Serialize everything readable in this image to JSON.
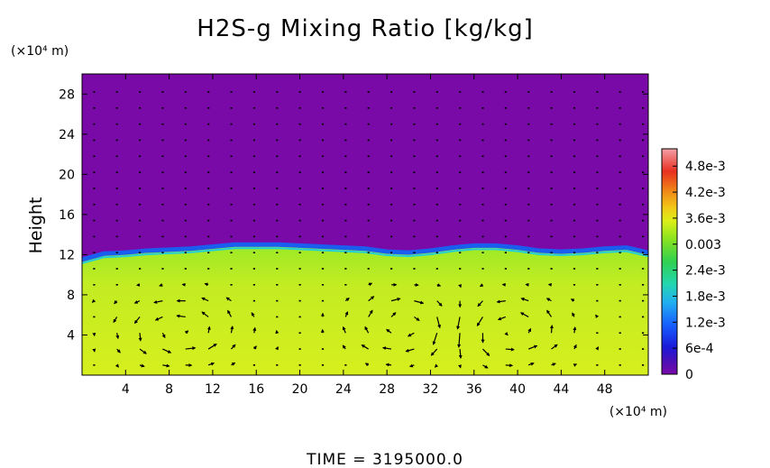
{
  "chart_data": {
    "type": "heatmap",
    "title": "H2S-g Mixing Ratio [kg/kg]",
    "xlabel": "",
    "x_unit": "(×10⁴ m)",
    "ylabel": "Height",
    "y_unit": "(×10⁴ m)",
    "footer": "TIME = 3195000.0",
    "xlim": [
      0,
      52
    ],
    "ylim": [
      0,
      30
    ],
    "x_ticks": [
      "4",
      "8",
      "12",
      "16",
      "20",
      "24",
      "28",
      "32",
      "36",
      "40",
      "44",
      "48"
    ],
    "y_ticks": [
      "4",
      "8",
      "12",
      "16",
      "20",
      "24",
      "28"
    ],
    "colorbar": {
      "range": [
        0,
        0.0052
      ],
      "tick_labels": [
        "0",
        "6e-4",
        "1.2e-3",
        "1.8e-3",
        "2.4e-3",
        "0.003",
        "3.6e-3",
        "4.2e-3",
        "4.8e-3"
      ],
      "tick_values": [
        0,
        0.0006,
        0.0012,
        0.0018,
        0.0024,
        0.003,
        0.0036,
        0.0042,
        0.0048
      ]
    },
    "field": {
      "upper_value": 0,
      "upper_color": "#7a0aa8",
      "lower_value": 0.0036,
      "lower_color": "#d6ef1e",
      "transition_color": "#3ce02e",
      "interface_height": [
        [
          0,
          11.5
        ],
        [
          2,
          12.1
        ],
        [
          4,
          12.2
        ],
        [
          6,
          12.4
        ],
        [
          8,
          12.5
        ],
        [
          10,
          12.6
        ],
        [
          12,
          12.8
        ],
        [
          14,
          13.0
        ],
        [
          16,
          13.0
        ],
        [
          18,
          13.0
        ],
        [
          20,
          12.9
        ],
        [
          22,
          12.8
        ],
        [
          24,
          12.7
        ],
        [
          26,
          12.6
        ],
        [
          28,
          12.3
        ],
        [
          30,
          12.2
        ],
        [
          32,
          12.4
        ],
        [
          34,
          12.7
        ],
        [
          36,
          12.9
        ],
        [
          38,
          12.9
        ],
        [
          40,
          12.7
        ],
        [
          42,
          12.4
        ],
        [
          44,
          12.3
        ],
        [
          46,
          12.4
        ],
        [
          48,
          12.6
        ],
        [
          50,
          12.7
        ],
        [
          52,
          12.2
        ]
      ]
    },
    "vectors": "velocity arrows, two circulation cells centered near x=9 and x=39, y=4"
  }
}
